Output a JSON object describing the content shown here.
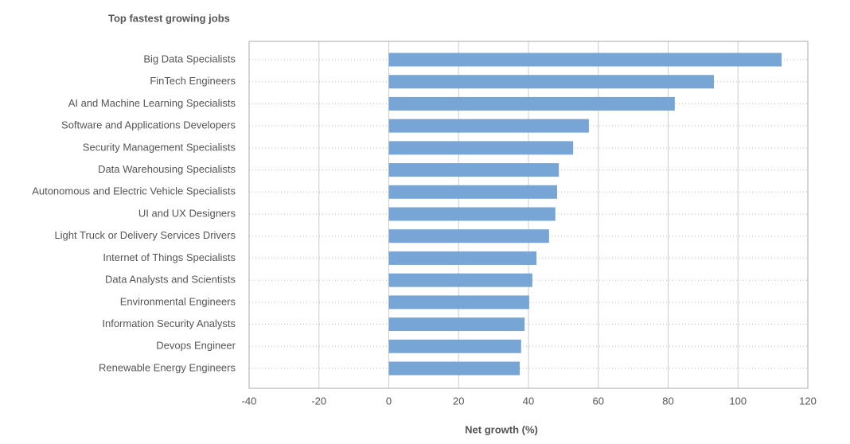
{
  "chart_data": {
    "type": "bar",
    "orientation": "horizontal",
    "title": "Top fastest growing jobs",
    "x_label": "Net growth (%)",
    "categories": [
      "Big Data Specialists",
      "FinTech Engineers",
      "AI and Machine Learning Specialists",
      "Software and Applications Developers",
      "Security Management Specialists",
      "Data Warehousing Specialists",
      "Autonomous and Electric Vehicle Specialists",
      "UI and UX Designers",
      "Light Truck or Delivery Services Drivers",
      "Internet of Things Specialists",
      "Data Analysts and Scientists",
      "Environmental Engineers",
      "Information Security Analysts",
      "Devops Engineer",
      "Renewable Energy Engineers"
    ],
    "values": [
      112.5,
      93.1,
      81.9,
      57.3,
      52.8,
      48.7,
      48.2,
      47.7,
      45.9,
      42.3,
      41.1,
      40.2,
      38.9,
      37.9,
      37.5
    ],
    "color": "#77a5d5",
    "xlim": [
      -40,
      120
    ],
    "xticks": [
      -40,
      -20,
      0,
      20,
      40,
      60,
      80,
      100,
      120
    ],
    "grid": true
  }
}
